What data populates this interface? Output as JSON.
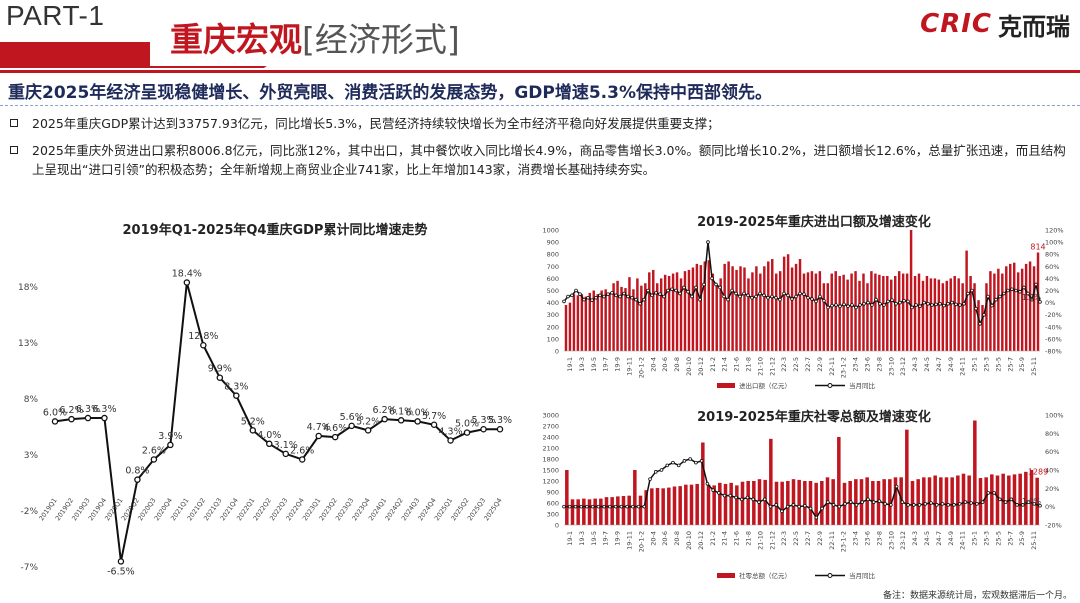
{
  "header": {
    "part_label": "PART-1",
    "title_main": "重庆宏观",
    "title_sub": "[经济形式]",
    "logo_mark": "CRIC",
    "logo_cn": "克而瑞"
  },
  "headline": "重庆2025年经济呈现稳健增长、外贸亮眼、消费活跃的发展态势，GDP增速5.3%保持中西部领先。",
  "bullets": [
    "2025年重庆GDP累计达到33757.93亿元，同比增长5.3%，民营经济持续较快增长为全市经济平稳向好发展提供重要支撑；",
    "2025年重庆外贸进出口累积8006.8亿元，同比涨12%，其中出口，其中餐饮收入同比增长4.9%，商品零售增长3.0%。额同比增长10.2%，进口额增长12.6%，总量扩张迅速，而且结构上呈现出“进口引领”的积极态势；全年新增规上商贸业企业741家，比上年增加143家，消费增长基础持续夯实。"
  ],
  "note": "备注：数据来源统计局，宏观数据滞后一个月。",
  "chart_data": [
    {
      "type": "line",
      "title": "2019年Q1-2025年Q4重庆GDP累计同比增速走势",
      "categories": [
        "2019Q1",
        "2019Q2",
        "2019Q3",
        "2019Q4",
        "2020Q1",
        "2020Q2",
        "2020Q3",
        "2020Q4",
        "2021Q1",
        "2021Q2",
        "2021Q3",
        "2021Q4",
        "2022Q1",
        "2022Q2",
        "2022Q3",
        "2022Q4",
        "2023Q1",
        "2023Q2",
        "2023Q3",
        "2023Q4",
        "2024Q1",
        "2024Q2",
        "2024Q3",
        "2024Q4",
        "2025Q1",
        "2025Q2",
        "2025Q3",
        "2025Q4"
      ],
      "values": [
        6.0,
        6.2,
        6.3,
        6.3,
        -6.5,
        0.8,
        2.6,
        3.9,
        18.4,
        12.8,
        9.9,
        8.3,
        5.2,
        4.0,
        3.1,
        2.6,
        4.7,
        4.6,
        5.6,
        5.2,
        6.2,
        6.1,
        6.0,
        5.7,
        4.3,
        5.0,
        5.3,
        5.3
      ],
      "labels": [
        "6.0%",
        "6.2%",
        "6.3%",
        "6.3%",
        "-6.5%",
        "0.8%",
        "2.6%",
        "3.9%",
        "18.4%",
        "12.8%",
        "9.9%",
        "8.3%",
        "5.2%",
        "4.0%",
        "3.1%",
        "2.6%",
        "4.7%",
        "4.6%",
        "5.6%",
        "5.2%",
        "6.2%",
        "6.1%",
        "6.0%",
        "5.7%",
        "4.3%",
        "5.0%",
        "5.3%",
        "5.3%"
      ],
      "y_ticks": [
        "18%",
        "13%",
        "8%",
        "3%",
        "-2%",
        "-7%"
      ],
      "ylim": [
        -7,
        18
      ],
      "grid": false,
      "colors": {
        "line": "#111111"
      }
    },
    {
      "type": "bar",
      "title": "2019-2025年重庆进出口额及增速变化",
      "x_tick_labels": [
        "19-1",
        "19-3",
        "19-5",
        "19-7",
        "19-9",
        "19-11",
        "20-1-2",
        "20-4",
        "20-6",
        "20-8",
        "20-10",
        "20-12",
        "21-2",
        "21-4",
        "21-6",
        "21-8",
        "21-10",
        "21-12",
        "22-3",
        "22-5",
        "22-7",
        "22-9",
        "22-11",
        "23-1-2",
        "23-4",
        "23-6",
        "23-8",
        "23-10",
        "23-12",
        "24-3",
        "24-5",
        "24-7",
        "24-9",
        "24-11",
        "25-1",
        "25-3",
        "25-5",
        "25-7",
        "25-9",
        "25-11"
      ],
      "left_ticks": [
        "1000",
        "900",
        "800",
        "700",
        "600",
        "500",
        "400",
        "300",
        "200",
        "100",
        "0"
      ],
      "right_ticks": [
        "120%",
        "100%",
        "80%",
        "60%",
        "40%",
        "20%",
        "0%",
        "-20%",
        "-40%",
        "-60%",
        "-80%"
      ],
      "ylim": [
        0,
        1000
      ],
      "y2lim": [
        -80,
        120
      ],
      "series": [
        {
          "name": "进出口额（亿元）",
          "color": "#c0161f",
          "values": [
            380,
            400,
            470,
            460,
            470,
            450,
            480,
            500,
            470,
            500,
            510,
            480,
            560,
            580,
            530,
            520,
            610,
            510,
            600,
            540,
            560,
            650,
            670,
            560,
            600,
            630,
            620,
            640,
            650,
            600,
            660,
            670,
            690,
            720,
            710,
            740,
            750,
            640,
            540,
            600,
            720,
            740,
            700,
            670,
            700,
            690,
            600,
            650,
            700,
            640,
            700,
            740,
            760,
            640,
            660,
            780,
            800,
            690,
            720,
            760,
            640,
            650,
            660,
            640,
            660,
            560,
            560,
            640,
            660,
            620,
            630,
            590,
            640,
            660,
            580,
            640,
            560,
            660,
            640,
            630,
            620,
            620,
            590,
            620,
            660,
            640,
            640,
            1000,
            620,
            640,
            580,
            620,
            600,
            600,
            590,
            560,
            580,
            600,
            620,
            600,
            560,
            830,
            620,
            560,
            420,
            380,
            560,
            660,
            640,
            680,
            640,
            700,
            720,
            730,
            650,
            680,
            720,
            740,
            700,
            814
          ]
        },
        {
          "name": "当月同比",
          "values": [
            2,
            10,
            12,
            20,
            14,
            5,
            8,
            4,
            8,
            12,
            10,
            14,
            16,
            12,
            10,
            15,
            10,
            8,
            5,
            -2,
            5,
            20,
            12,
            16,
            14,
            10,
            20,
            22,
            20,
            15,
            25,
            18,
            10,
            25,
            5,
            30,
            100,
            40,
            30,
            25,
            10,
            5,
            20,
            15,
            10,
            15,
            12,
            8,
            10,
            15,
            12,
            8,
            10,
            8,
            5,
            15,
            12,
            6,
            10,
            15,
            14,
            8,
            6,
            2,
            10,
            3,
            -8,
            -5,
            -4,
            -6,
            -3,
            -6,
            -4,
            -8,
            -4,
            -2,
            0,
            -4,
            5,
            -2,
            -4,
            2,
            4,
            -2,
            0,
            3,
            2,
            -8,
            -4,
            -6,
            0,
            -2,
            -4,
            -3,
            -2,
            -5,
            -2,
            0,
            -3,
            -4,
            -2,
            15,
            20,
            -10,
            -35,
            -20,
            10,
            -5,
            5,
            10,
            15,
            20,
            22,
            20,
            18,
            25,
            15,
            5,
            30,
            1.2
          ]
        }
      ],
      "labels": {
        "last_bar": "814",
        "last_line": "1.2%"
      },
      "legend": [
        "进出口额（亿元）",
        "当月同比"
      ]
    },
    {
      "type": "bar",
      "title": "2019-2025年重庆社零总额及增速变化",
      "x_tick_labels": [
        "19-1",
        "19-3",
        "19-5",
        "19-7",
        "19-9",
        "19-11",
        "20-1-2",
        "20-4",
        "20-6",
        "20-8",
        "20-10",
        "20-12",
        "21-2",
        "21-4",
        "21-6",
        "21-8",
        "21-10",
        "21-12",
        "22-3",
        "22-5",
        "22-7",
        "22-9",
        "22-11",
        "23-1-2",
        "23-4",
        "23-6",
        "23-8",
        "23-10",
        "23-12",
        "24-3",
        "24-5",
        "24-7",
        "24-9",
        "24-11",
        "25-1",
        "25-3",
        "25-5",
        "25-7",
        "25-9",
        "25-11"
      ],
      "left_ticks": [
        "3000",
        "2700",
        "2400",
        "2100",
        "1800",
        "1500",
        "1200",
        "900",
        "600",
        "300",
        "0"
      ],
      "right_ticks": [
        "100%",
        "80%",
        "60%",
        "40%",
        "20%",
        "0%",
        "-20%"
      ],
      "ylim": [
        0,
        3000
      ],
      "y2lim": [
        -20,
        100
      ],
      "series": [
        {
          "name": "社零总额（亿元）",
          "color": "#c0161f",
          "values": [
            1500,
            700,
            700,
            720,
            700,
            720,
            720,
            760,
            760,
            780,
            790,
            800,
            1500,
            800,
            950,
            1000,
            1010,
            1000,
            1020,
            1050,
            1060,
            1100,
            1100,
            1120,
            2250,
            1100,
            1080,
            1150,
            1120,
            1150,
            1080,
            1180,
            1200,
            1200,
            1250,
            1230,
            2350,
            1180,
            1180,
            1200,
            1250,
            1230,
            1200,
            1200,
            1150,
            1200,
            1300,
            1250,
            2400,
            1150,
            1200,
            1250,
            1250,
            1300,
            1200,
            1200,
            1250,
            1250,
            1300,
            1300,
            2600,
            1200,
            1250,
            1300,
            1300,
            1350,
            1300,
            1300,
            1300,
            1350,
            1400,
            1350,
            2850,
            1280,
            1300,
            1380,
            1350,
            1400,
            1350,
            1380,
            1400,
            1450,
            1500,
            1289
          ]
        },
        {
          "name": "当月同比",
          "values": [
            0,
            0,
            0,
            0,
            0,
            0,
            0,
            0,
            0,
            0,
            0,
            0,
            0,
            0,
            0,
            30,
            38,
            40,
            45,
            48,
            45,
            50,
            52,
            48,
            50,
            25,
            18,
            15,
            12,
            12,
            10,
            8,
            10,
            8,
            5,
            8,
            0,
            2,
            -5,
            0,
            2,
            0,
            1,
            -2,
            -12,
            -2,
            5,
            2,
            0,
            3,
            5,
            2,
            5,
            8,
            5,
            6,
            3,
            2,
            22,
            5,
            2,
            2,
            2,
            3,
            4,
            2,
            3,
            2,
            2,
            3,
            5,
            4,
            3,
            5,
            15,
            15,
            8,
            5,
            8,
            2,
            2,
            5,
            3,
            1
          ]
        }
      ],
      "labels": {
        "last_bar": "1289",
        "last_line": "1.0%"
      },
      "legend": [
        "社零总额（亿元）",
        "当月同比"
      ]
    }
  ]
}
